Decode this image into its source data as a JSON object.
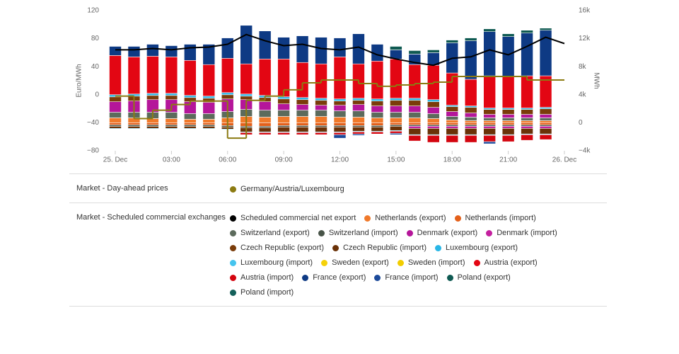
{
  "chart_data": {
    "type": "bar",
    "stacked": true,
    "x": [
      0,
      1,
      2,
      3,
      4,
      5,
      6,
      7,
      8,
      9,
      10,
      11,
      12,
      13,
      14,
      15,
      16,
      17,
      18,
      19,
      20,
      21,
      22,
      23
    ],
    "xlim": [
      0,
      24
    ],
    "xticks": [
      {
        "value": 0,
        "label": "25. Dec"
      },
      {
        "value": 3,
        "label": "03:00"
      },
      {
        "value": 6,
        "label": "06:00"
      },
      {
        "value": 9,
        "label": "09:00"
      },
      {
        "value": 12,
        "label": "12:00"
      },
      {
        "value": 15,
        "label": "15:00"
      },
      {
        "value": 18,
        "label": "18:00"
      },
      {
        "value": 21,
        "label": "21:00"
      },
      {
        "value": 24,
        "label": "26. Dec"
      }
    ],
    "ylabel": "Euro/MWh",
    "ylim": [
      -80,
      120
    ],
    "yticks": [
      120,
      80,
      40,
      0,
      {
        "value": -40,
        "label": "−40"
      },
      {
        "value": -80,
        "label": "−80"
      }
    ],
    "y2label": "MWh",
    "y2lim": [
      -4000,
      16000
    ],
    "y2ticks": [
      {
        "value": 16000,
        "label": "16k"
      },
      {
        "value": 12000,
        "label": "12k"
      },
      {
        "value": 8000,
        "label": "8k"
      },
      {
        "value": 4000,
        "label": "4k"
      },
      0,
      {
        "value": -4000,
        "label": "−4k"
      }
    ],
    "grid": false,
    "groups": [
      {
        "title": "Market - Day-ahead prices",
        "series": [
          {
            "name": "Germany/Austria/Luxembourg",
            "color": "#8c7b12",
            "type": "step",
            "axis": "y",
            "values": [
              -2,
              -34,
              -22,
              -14,
              -9,
              -9,
              -62,
              -8,
              -2,
              7,
              17,
              21,
              21,
              16,
              12,
              14,
              16,
              18,
              26,
              26,
              26,
              26,
              21,
              21
            ]
          }
        ]
      },
      {
        "title": "Market - Scheduled commercial exchanges",
        "series": [
          {
            "name": "Scheduled commercial net export",
            "color": "#000000",
            "type": "line",
            "axis": "y2",
            "x": [
              0,
              1,
              2,
              3,
              4,
              5,
              6,
              7,
              8,
              9,
              10,
              11,
              12,
              13,
              14,
              15,
              16,
              17,
              18,
              19,
              20,
              21,
              22,
              23,
              24
            ],
            "values": [
              10400,
              10400,
              10600,
              10400,
              10700,
              10800,
              11200,
              12600,
              11700,
              11000,
              11200,
              10600,
              10400,
              10800,
              9700,
              9100,
              8600,
              8200,
              9200,
              9400,
              10400,
              9700,
              10900,
              12200,
              11300
            ]
          },
          {
            "name": "Netherlands (export)",
            "color": "#f0792a",
            "type": "bar",
            "axis": "y2",
            "values": [
              700,
              700,
              600,
              600,
              500,
              500,
              700,
              900,
              800,
              900,
              900,
              900,
              800,
              800,
              700,
              700,
              700,
              600,
              400,
              300,
              300,
              300,
              300,
              300
            ]
          },
          {
            "name": "Netherlands (import)",
            "color": "#e4601a",
            "type": "bar",
            "axis": "y2",
            "values": [
              -300,
              -300,
              -300,
              -300,
              -300,
              -300,
              -400,
              -500,
              -500,
              -400,
              -400,
              -400,
              -400,
              -400,
              -400,
              -300,
              -300,
              -300,
              -300,
              -300,
              -300,
              -300,
              -300,
              -300
            ]
          },
          {
            "name": "Switzerland (export)",
            "color": "#5c6b5c",
            "type": "bar",
            "axis": "y2",
            "values": [
              800,
              800,
              900,
              900,
              800,
              800,
              900,
              1000,
              1000,
              900,
              900,
              900,
              900,
              900,
              800,
              800,
              800,
              700,
              500,
              500,
              400,
              400,
              400,
              400
            ]
          },
          {
            "name": "Switzerland (import)",
            "color": "#485448",
            "type": "bar",
            "axis": "y2",
            "values": [
              -200,
              -200,
              -200,
              -200,
              -200,
              -200,
              -200,
              -200,
              -200,
              -200,
              -200,
              -200,
              -200,
              -200,
              -200,
              -200,
              -200,
              -200,
              -200,
              -200,
              -200,
              -200,
              -200,
              -200
            ]
          },
          {
            "name": "Denmark (export)",
            "color": "#b5169a",
            "type": "bar",
            "axis": "y2",
            "values": [
              1500,
              1600,
              1800,
              1800,
              1700,
              1600,
              1800,
              1400,
              1200,
              900,
              800,
              700,
              800,
              900,
              900,
              900,
              900,
              900,
              700,
              600,
              500,
              500,
              500,
              500
            ]
          },
          {
            "name": "Denmark (import)",
            "color": "#c4209f",
            "type": "bar",
            "axis": "y2",
            "values": [
              0,
              0,
              0,
              0,
              0,
              0,
              0,
              0,
              0,
              0,
              0,
              0,
              0,
              0,
              0,
              0,
              -300,
              -300,
              -300,
              -300,
              -300,
              -300,
              -300,
              -300
            ]
          },
          {
            "name": "Czech Republic (export)",
            "color": "#7a3c0a",
            "type": "bar",
            "axis": "y2",
            "values": [
              700,
              700,
              600,
              600,
              600,
              600,
              600,
              500,
              600,
              700,
              700,
              700,
              600,
              600,
              700,
              800,
              800,
              800,
              700,
              800,
              700,
              700,
              700,
              800
            ]
          },
          {
            "name": "Czech Republic (import)",
            "color": "#6a3208",
            "type": "bar",
            "axis": "y2",
            "values": [
              -300,
              -300,
              -300,
              -300,
              -300,
              -300,
              -300,
              -600,
              -600,
              -700,
              -700,
              -700,
              -700,
              -600,
              -600,
              -600,
              -900,
              -900,
              -900,
              -900,
              -900,
              -900,
              -800,
              -800
            ]
          },
          {
            "name": "Luxembourg (export)",
            "color": "#29b6e6",
            "type": "bar",
            "axis": "y2",
            "values": [
              300,
              300,
              300,
              300,
              300,
              300,
              300,
              300,
              300,
              300,
              300,
              300,
              300,
              300,
              300,
              300,
              300,
              300,
              200,
              200,
              200,
              200,
              200,
              200
            ]
          },
          {
            "name": "Luxembourg (import)",
            "color": "#45c4ee",
            "type": "bar",
            "axis": "y2",
            "values": [
              -100,
              -100,
              -100,
              -100,
              -100,
              -100,
              -100,
              -100,
              -100,
              -100,
              -100,
              -100,
              -100,
              -100,
              -100,
              -100,
              -100,
              -100,
              -100,
              -100,
              -100,
              -100,
              -100,
              -100
            ]
          },
          {
            "name": "Sweden (export)",
            "color": "#f5d10a",
            "type": "bar",
            "axis": "y2",
            "values": [
              0,
              0,
              0,
              0,
              0,
              0,
              0,
              0,
              0,
              0,
              0,
              0,
              0,
              0,
              0,
              0,
              0,
              0,
              0,
              0,
              0,
              0,
              0,
              0
            ]
          },
          {
            "name": "Sweden (import)",
            "color": "#f2cd00",
            "type": "bar",
            "axis": "y2",
            "values": [
              0,
              0,
              0,
              0,
              0,
              0,
              0,
              0,
              0,
              0,
              0,
              0,
              0,
              0,
              0,
              0,
              0,
              0,
              0,
              0,
              0,
              0,
              0,
              0
            ]
          },
          {
            "name": "Austria (export)",
            "color": "#e30613",
            "type": "bar",
            "axis": "y2",
            "values": [
              5600,
              5300,
              5300,
              5200,
              5000,
              4500,
              4900,
              4300,
              5200,
              5400,
              5000,
              4900,
              6000,
              4900,
              5400,
              5600,
              4800,
              4900,
              4600,
              3800,
              4600,
              4500,
              4600,
              4500
            ]
          },
          {
            "name": "Austria (import)",
            "color": "#d4050f",
            "type": "bar",
            "axis": "y2",
            "values": [
              0,
              0,
              0,
              0,
              0,
              0,
              0,
              -300,
              -300,
              -300,
              -300,
              -300,
              -300,
              -300,
              -300,
              -300,
              -800,
              -1000,
              -1000,
              -1000,
              -900,
              -900,
              -800,
              -700
            ]
          },
          {
            "name": "France (export)",
            "color": "#0e3a84",
            "type": "bar",
            "axis": "y2",
            "values": [
              1300,
              1500,
              1700,
              1600,
              2300,
              2900,
              2900,
              5500,
              4000,
              3100,
              3800,
              3800,
              2700,
              4300,
              2400,
              1300,
              1500,
              1800,
              4300,
              5500,
              6300,
              5700,
              6100,
              6500
            ]
          },
          {
            "name": "France (import)",
            "color": "#1c4a9a",
            "type": "bar",
            "axis": "y2",
            "values": [
              0,
              0,
              0,
              0,
              0,
              0,
              0,
              0,
              0,
              0,
              0,
              0,
              -500,
              -200,
              0,
              -200,
              0,
              0,
              0,
              0,
              -300,
              0,
              0,
              0
            ]
          },
          {
            "name": "Poland (export)",
            "color": "#0f5a52",
            "type": "bar",
            "axis": "y2",
            "values": [
              0,
              0,
              0,
              0,
              0,
              0,
              0,
              0,
              0,
              0,
              0,
              0,
              0,
              0,
              0,
              500,
              500,
              400,
              400,
              400,
              400,
              400,
              400,
              300
            ]
          },
          {
            "name": "Poland (import)",
            "color": "#14605a",
            "type": "bar",
            "axis": "y2",
            "values": [
              0,
              0,
              0,
              0,
              0,
              0,
              0,
              0,
              0,
              0,
              0,
              0,
              0,
              0,
              0,
              0,
              0,
              0,
              0,
              0,
              0,
              0,
              0,
              0
            ]
          }
        ]
      }
    ]
  }
}
